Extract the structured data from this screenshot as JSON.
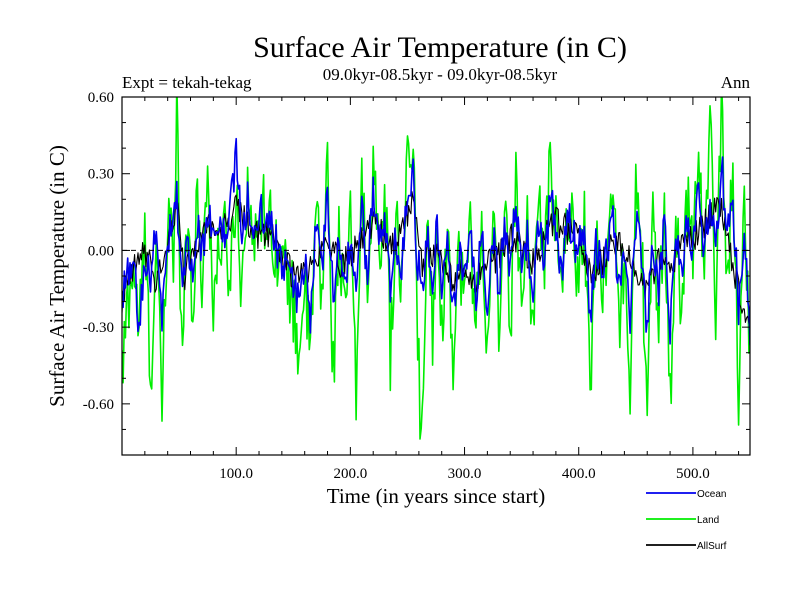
{
  "chart_data": {
    "type": "line",
    "title": "Surface Air Temperature (in C)",
    "subtitle": "09.0kyr-08.5kyr - 09.0kyr-08.5kyr",
    "experiment_label": "Expt = tekah-tekag",
    "season_label": "Ann",
    "xlabel": "Time (in years since start)",
    "ylabel": "Surface Air Temperature (in C)",
    "xlim": [
      0,
      550
    ],
    "ylim": [
      -0.8,
      0.6
    ],
    "x_ticks": [
      100,
      200,
      300,
      400,
      500
    ],
    "x_tick_labels": [
      "100.0",
      "200.0",
      "300.0",
      "400.0",
      "500.0"
    ],
    "y_ticks": [
      0.6,
      0.3,
      0.0,
      -0.3,
      -0.6
    ],
    "y_tick_labels": [
      "0.60",
      "0.30",
      "0.00",
      "-0.30",
      "-0.60"
    ],
    "zero_line": true,
    "legend_position": "bottom-right",
    "series": [
      {
        "name": "Land",
        "color": "#00ee00",
        "anchors": [
          [
            0,
            -0.5
          ],
          [
            5,
            -0.2
          ],
          [
            10,
            -0.05
          ],
          [
            15,
            -0.3
          ],
          [
            20,
            0.05
          ],
          [
            25,
            -0.5
          ],
          [
            30,
            0.0
          ],
          [
            35,
            -0.6
          ],
          [
            40,
            0.1
          ],
          [
            43,
            0.25
          ],
          [
            45,
            -0.2
          ],
          [
            48,
            0.57
          ],
          [
            52,
            -0.3
          ],
          [
            58,
            0.15
          ],
          [
            62,
            -0.25
          ],
          [
            66,
            0.2
          ],
          [
            70,
            -0.1
          ],
          [
            75,
            0.3
          ],
          [
            80,
            -0.2
          ],
          [
            88,
            0.1
          ],
          [
            95,
            -0.1
          ],
          [
            100,
            0.25
          ],
          [
            105,
            -0.15
          ],
          [
            110,
            0.3
          ],
          [
            115,
            -0.05
          ],
          [
            120,
            0.2
          ],
          [
            130,
            0.1
          ],
          [
            140,
            -0.05
          ],
          [
            148,
            -0.15
          ],
          [
            155,
            -0.4
          ],
          [
            160,
            -0.1
          ],
          [
            165,
            -0.45
          ],
          [
            170,
            0.2
          ],
          [
            175,
            -0.2
          ],
          [
            180,
            0.35
          ],
          [
            185,
            -0.5
          ],
          [
            190,
            0.1
          ],
          [
            195,
            -0.3
          ],
          [
            200,
            0.15
          ],
          [
            205,
            -0.6
          ],
          [
            210,
            0.3
          ],
          [
            215,
            -0.2
          ],
          [
            220,
            0.4
          ],
          [
            225,
            -0.1
          ],
          [
            230,
            0.3
          ],
          [
            235,
            -0.4
          ],
          [
            240,
            0.1
          ],
          [
            245,
            -0.15
          ],
          [
            250,
            0.3
          ],
          [
            255,
            0.44
          ],
          [
            258,
            -0.2
          ],
          [
            262,
            -0.74
          ],
          [
            268,
            0.1
          ],
          [
            272,
            -0.3
          ],
          [
            276,
            0.2
          ],
          [
            280,
            -0.35
          ],
          [
            285,
            0.1
          ],
          [
            290,
            -0.4
          ],
          [
            295,
            0.0
          ],
          [
            300,
            -0.2
          ],
          [
            305,
            0.1
          ],
          [
            310,
            -0.3
          ],
          [
            315,
            0.15
          ],
          [
            320,
            -0.45
          ],
          [
            325,
            0.1
          ],
          [
            330,
            -0.3
          ],
          [
            335,
            0.2
          ],
          [
            340,
            -0.3
          ],
          [
            345,
            0.25
          ],
          [
            350,
            -0.2
          ],
          [
            355,
            0.1
          ],
          [
            360,
            -0.3
          ],
          [
            365,
            0.25
          ],
          [
            370,
            -0.1
          ],
          [
            375,
            0.35
          ],
          [
            380,
            0.1
          ],
          [
            385,
            -0.2
          ],
          [
            390,
            0.2
          ],
          [
            395,
            0.05
          ],
          [
            400,
            -0.1
          ],
          [
            405,
            0.15
          ],
          [
            410,
            -0.6
          ],
          [
            415,
            0.1
          ],
          [
            420,
            -0.2
          ],
          [
            430,
            0.25
          ],
          [
            435,
            -0.3
          ],
          [
            440,
            0.0
          ],
          [
            445,
            -0.5
          ],
          [
            450,
            0.2
          ],
          [
            455,
            0.0
          ],
          [
            460,
            -0.55
          ],
          [
            465,
            0.1
          ],
          [
            470,
            -0.3
          ],
          [
            475,
            0.2
          ],
          [
            480,
            -0.6
          ],
          [
            485,
            0.1
          ],
          [
            490,
            -0.2
          ],
          [
            495,
            0.2
          ],
          [
            500,
            0.0
          ],
          [
            505,
            0.45
          ],
          [
            510,
            -0.1
          ],
          [
            515,
            0.5
          ],
          [
            520,
            -0.2
          ],
          [
            525,
            0.55
          ],
          [
            530,
            -0.1
          ],
          [
            535,
            0.3
          ],
          [
            540,
            -0.55
          ],
          [
            545,
            0.2
          ],
          [
            550,
            -0.4
          ]
        ],
        "jitter": 0.15
      },
      {
        "name": "AllSurf",
        "color": "#000000",
        "anchors": [
          [
            0,
            -0.2
          ],
          [
            10,
            -0.08
          ],
          [
            20,
            0.0
          ],
          [
            30,
            -0.12
          ],
          [
            40,
            0.02
          ],
          [
            48,
            0.18
          ],
          [
            55,
            -0.1
          ],
          [
            65,
            0.02
          ],
          [
            75,
            0.1
          ],
          [
            85,
            0.08
          ],
          [
            95,
            0.12
          ],
          [
            100,
            0.18
          ],
          [
            110,
            0.1
          ],
          [
            120,
            0.05
          ],
          [
            130,
            0.08
          ],
          [
            140,
            -0.02
          ],
          [
            150,
            -0.1
          ],
          [
            160,
            -0.08
          ],
          [
            170,
            -0.05
          ],
          [
            180,
            0.05
          ],
          [
            190,
            -0.05
          ],
          [
            200,
            -0.02
          ],
          [
            210,
            0.05
          ],
          [
            220,
            0.12
          ],
          [
            230,
            0.05
          ],
          [
            240,
            0.0
          ],
          [
            250,
            0.15
          ],
          [
            255,
            0.22
          ],
          [
            262,
            -0.05
          ],
          [
            270,
            0.0
          ],
          [
            280,
            -0.05
          ],
          [
            290,
            -0.12
          ],
          [
            300,
            -0.08
          ],
          [
            310,
            -0.12
          ],
          [
            320,
            -0.05
          ],
          [
            330,
            -0.02
          ],
          [
            340,
            0.05
          ],
          [
            350,
            0.0
          ],
          [
            360,
            -0.05
          ],
          [
            370,
            0.05
          ],
          [
            380,
            0.12
          ],
          [
            390,
            0.08
          ],
          [
            400,
            0.05
          ],
          [
            410,
            -0.1
          ],
          [
            420,
            -0.05
          ],
          [
            430,
            0.05
          ],
          [
            440,
            0.0
          ],
          [
            450,
            -0.1
          ],
          [
            460,
            -0.15
          ],
          [
            470,
            -0.05
          ],
          [
            480,
            -0.1
          ],
          [
            490,
            0.05
          ],
          [
            500,
            0.05
          ],
          [
            510,
            0.1
          ],
          [
            520,
            0.15
          ],
          [
            525,
            0.2
          ],
          [
            530,
            0.05
          ],
          [
            540,
            -0.15
          ],
          [
            550,
            -0.28
          ]
        ],
        "jitter": 0.06
      },
      {
        "name": "Ocean",
        "color": "#0000ee",
        "anchors": [
          [
            0,
            -0.2
          ],
          [
            5,
            -0.1
          ],
          [
            10,
            -0.05
          ],
          [
            15,
            -0.3
          ],
          [
            20,
            0.0
          ],
          [
            25,
            -0.15
          ],
          [
            30,
            0.1
          ],
          [
            35,
            -0.25
          ],
          [
            40,
            0.05
          ],
          [
            45,
            0.15
          ],
          [
            48,
            0.2
          ],
          [
            52,
            -0.1
          ],
          [
            58,
            0.05
          ],
          [
            62,
            -0.15
          ],
          [
            66,
            0.1
          ],
          [
            70,
            0.0
          ],
          [
            75,
            0.15
          ],
          [
            80,
            0.05
          ],
          [
            88,
            0.1
          ],
          [
            92,
            0.0
          ],
          [
            100,
            0.4
          ],
          [
            105,
            0.1
          ],
          [
            110,
            0.2
          ],
          [
            115,
            0.0
          ],
          [
            120,
            0.15
          ],
          [
            130,
            0.1
          ],
          [
            140,
            -0.05
          ],
          [
            148,
            -0.1
          ],
          [
            155,
            -0.2
          ],
          [
            160,
            -0.05
          ],
          [
            165,
            -0.25
          ],
          [
            170,
            0.1
          ],
          [
            175,
            -0.1
          ],
          [
            180,
            0.2
          ],
          [
            185,
            -0.2
          ],
          [
            190,
            0.05
          ],
          [
            195,
            -0.15
          ],
          [
            200,
            0.05
          ],
          [
            205,
            -0.2
          ],
          [
            210,
            0.15
          ],
          [
            215,
            -0.1
          ],
          [
            220,
            0.25
          ],
          [
            225,
            0.0
          ],
          [
            230,
            0.15
          ],
          [
            235,
            -0.15
          ],
          [
            240,
            0.05
          ],
          [
            245,
            -0.1
          ],
          [
            250,
            0.25
          ],
          [
            255,
            0.3
          ],
          [
            258,
            0.0
          ],
          [
            262,
            -0.15
          ],
          [
            268,
            0.05
          ],
          [
            272,
            -0.1
          ],
          [
            276,
            0.1
          ],
          [
            280,
            -0.2
          ],
          [
            285,
            0.05
          ],
          [
            290,
            -0.25
          ],
          [
            295,
            0.0
          ],
          [
            300,
            -0.1
          ],
          [
            305,
            0.05
          ],
          [
            310,
            -0.2
          ],
          [
            315,
            0.1
          ],
          [
            320,
            -0.25
          ],
          [
            325,
            0.05
          ],
          [
            330,
            -0.15
          ],
          [
            335,
            0.1
          ],
          [
            340,
            -0.1
          ],
          [
            345,
            0.2
          ],
          [
            350,
            -0.1
          ],
          [
            355,
            0.05
          ],
          [
            360,
            -0.15
          ],
          [
            365,
            0.1
          ],
          [
            370,
            -0.05
          ],
          [
            375,
            0.2
          ],
          [
            380,
            0.1
          ],
          [
            385,
            -0.1
          ],
          [
            390,
            0.15
          ],
          [
            395,
            0.05
          ],
          [
            400,
            0.0
          ],
          [
            405,
            0.1
          ],
          [
            410,
            -0.3
          ],
          [
            415,
            0.05
          ],
          [
            420,
            -0.1
          ],
          [
            430,
            0.1
          ],
          [
            435,
            -0.15
          ],
          [
            440,
            0.0
          ],
          [
            445,
            -0.25
          ],
          [
            450,
            0.1
          ],
          [
            455,
            0.0
          ],
          [
            460,
            -0.3
          ],
          [
            465,
            0.05
          ],
          [
            470,
            -0.15
          ],
          [
            475,
            0.1
          ],
          [
            480,
            -0.3
          ],
          [
            485,
            0.05
          ],
          [
            490,
            -0.1
          ],
          [
            495,
            0.1
          ],
          [
            500,
            0.0
          ],
          [
            505,
            0.25
          ],
          [
            510,
            0.0
          ],
          [
            515,
            0.2
          ],
          [
            520,
            0.0
          ],
          [
            525,
            0.35
          ],
          [
            530,
            0.05
          ],
          [
            535,
            0.2
          ],
          [
            540,
            -0.25
          ],
          [
            545,
            0.05
          ],
          [
            550,
            -0.3
          ]
        ],
        "jitter": 0.08
      }
    ],
    "legend_order": [
      "Ocean",
      "Land",
      "AllSurf"
    ]
  }
}
